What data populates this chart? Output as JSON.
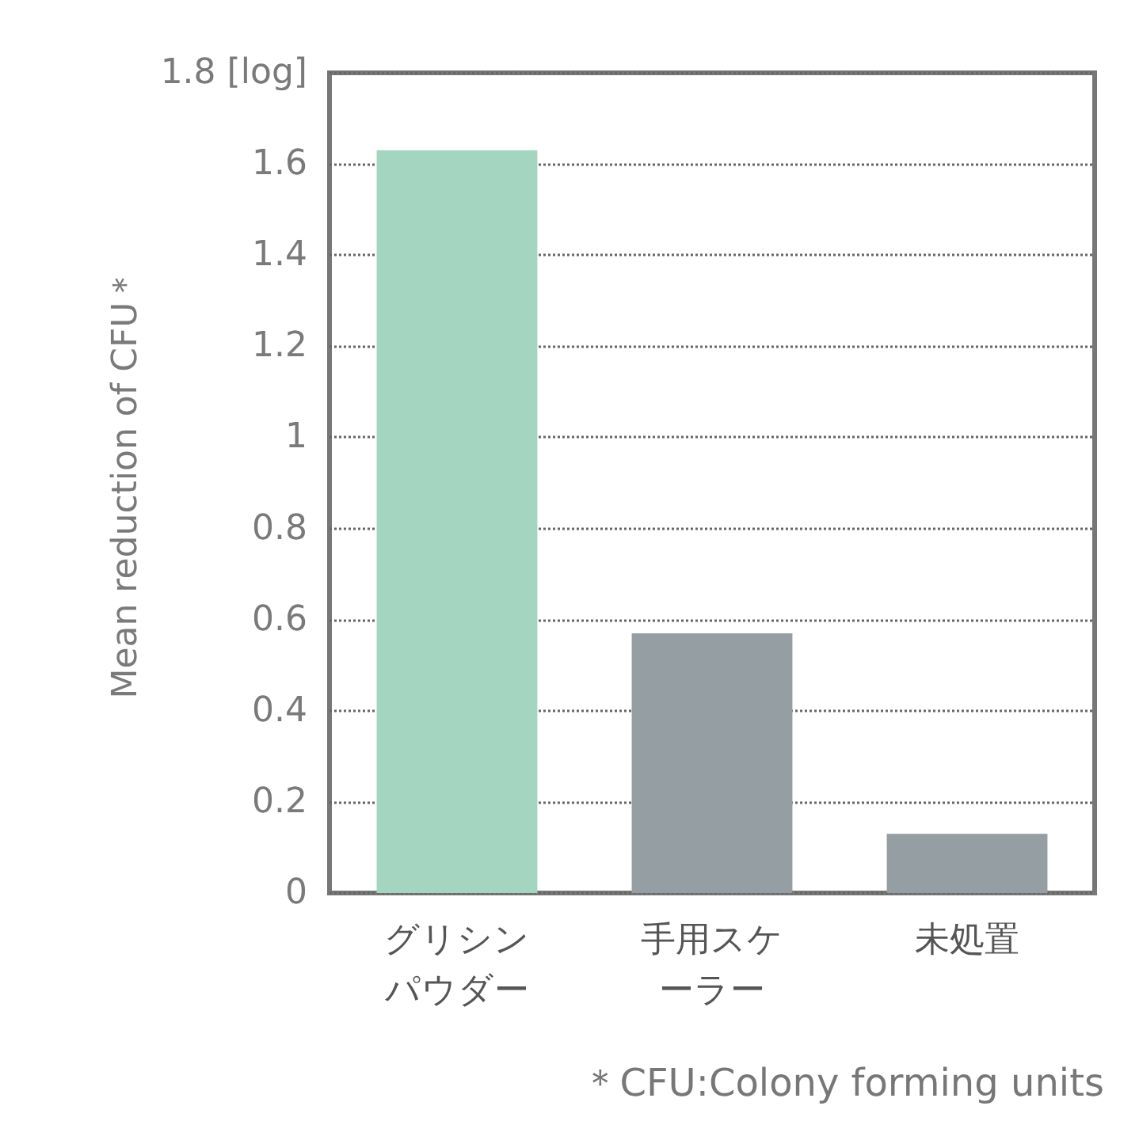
{
  "chart_data": {
    "type": "bar",
    "ylabel": "Mean reduction of CFU＊",
    "categories": [
      "グリシンパウダー",
      "手用スケーラー",
      "未処置"
    ],
    "values": [
      1.63,
      0.57,
      0.13
    ],
    "colors": [
      "#a3d5c0",
      "#959ea3",
      "#959ea3"
    ],
    "ylim": [
      0,
      1.8
    ],
    "yticks": [
      0,
      0.2,
      0.4,
      0.6,
      0.8,
      1.0,
      1.2,
      1.4,
      1.6,
      {
        "value": 1.8,
        "label": "1.8 [log]"
      }
    ],
    "grid": "y",
    "annotations": [
      "＊CFU:Colony forming units"
    ]
  }
}
